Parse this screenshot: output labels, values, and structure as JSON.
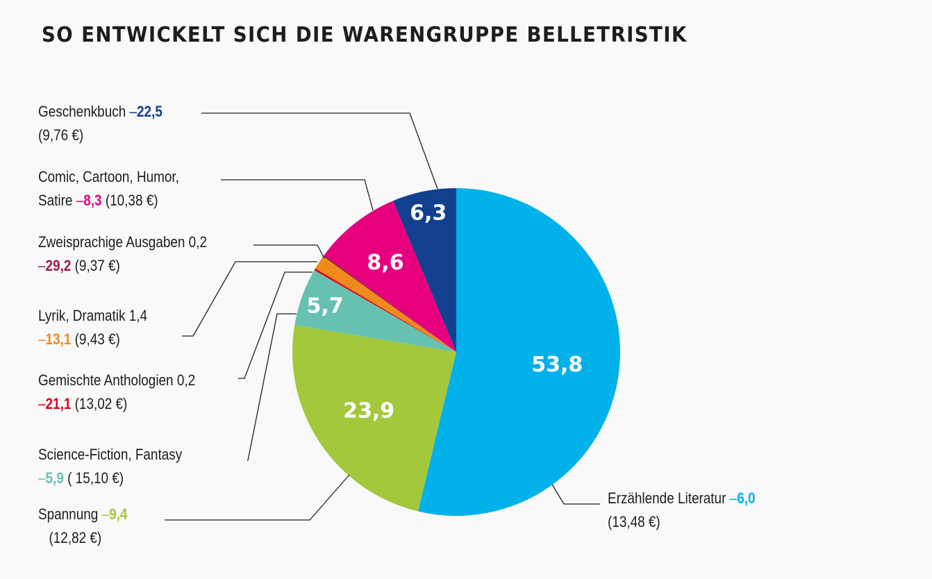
{
  "title": "SO ENTWICKELT SICH DIE WARENGRUPPE BELLETRISTIK",
  "chart_data": {
    "type": "pie",
    "title": "SO ENTWICKELT SICH DIE WARENGRUPPE BELLETRISTIK",
    "start": "12 o'clock, clockwise",
    "slices": [
      {
        "id": "erzaehlende",
        "name": "Erzählende Literatur",
        "value": 53.8,
        "value_label": "53,8",
        "change": "6,0",
        "price": "(13,48 €)",
        "color": "#00b1ea"
      },
      {
        "id": "spannung",
        "name": "Spannung",
        "value": 23.9,
        "value_label": "23,9",
        "change": "9,4",
        "price": "(12,82 €)",
        "color": "#a3c83b"
      },
      {
        "id": "scifi",
        "name": "Science-Fiction, Fantasy",
        "value": 5.7,
        "value_label": "5,7",
        "change": "5,9",
        "price": "( 15,10 €)",
        "color": "#67c1b0"
      },
      {
        "id": "anthologien",
        "name": "Gemischte Anthologien 0,2",
        "value": 0.2,
        "value_label": "",
        "change": "21,1",
        "price": "(13,02 €)",
        "color": "#e2001a"
      },
      {
        "id": "lyrik",
        "name": "Lyrik, Dramatik 1,4",
        "value": 1.4,
        "value_label": "",
        "change": "13,1",
        "price": "(9,43 €)",
        "color": "#f18a1c"
      },
      {
        "id": "zweisprachig",
        "name": "Zweisprachige Ausgaben 0,2",
        "value": 0.2,
        "value_label": "",
        "change": "29,2",
        "price": "(9,37 €)",
        "color": "#a21b4b"
      },
      {
        "id": "comic",
        "name_line1": "Comic, Cartoon, Humor,",
        "name_line2": "Satire",
        "value": 8.6,
        "value_label": "8,6",
        "change": "8,3",
        "price": "(10,38 €)",
        "color": "#e6007e"
      },
      {
        "id": "geschenkbuch",
        "name": "Geschenkbuch",
        "value": 6.3,
        "value_label": "6,3",
        "change": "22,5",
        "price": "(9,76 €)",
        "color": "#123f8e"
      }
    ],
    "dash": "–"
  }
}
